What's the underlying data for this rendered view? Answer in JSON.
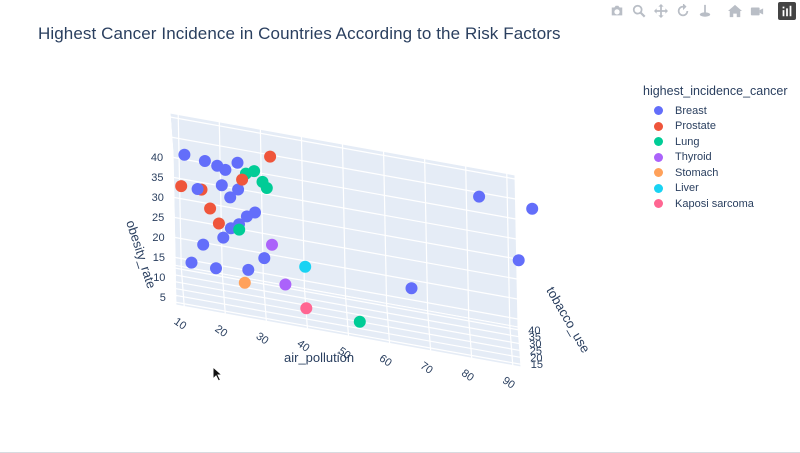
{
  "title": "Highest Cancer Incidence in Countries According to the Risk Factors",
  "modebar": [
    "camera-icon",
    "zoom-icon",
    "pan-icon",
    "orbit-icon",
    "turntable-icon",
    "home-icon",
    "camera-view-icon",
    "plotly-logo-icon"
  ],
  "legend": {
    "title": "highest_incidence_cancer",
    "items": [
      {
        "name": "Breast",
        "color": "#636efa"
      },
      {
        "name": "Prostate",
        "color": "#ef553b"
      },
      {
        "name": "Lung",
        "color": "#00cc96"
      },
      {
        "name": "Thyroid",
        "color": "#ab63fa"
      },
      {
        "name": "Stomach",
        "color": "#ffa15a"
      },
      {
        "name": "Liver",
        "color": "#19d3f3"
      },
      {
        "name": "Kaposi sarcoma",
        "color": "#ff6692"
      }
    ]
  },
  "chart_data": {
    "type": "scatter",
    "dimensions": 3,
    "title": "Highest Cancer Incidence in Countries According to the Risk Factors",
    "xlabel": "air_pollution",
    "ylabel": "tobacco_use",
    "zlabel": "obesity_rate",
    "x_ticks": [
      "10",
      "20",
      "30",
      "40",
      "50",
      "60",
      "70",
      "80",
      "90"
    ],
    "y_ticks": [
      "15",
      "20",
      "25",
      "30",
      "35",
      "40"
    ],
    "z_ticks": [
      "5",
      "10",
      "15",
      "20",
      "25",
      "30",
      "35",
      "40"
    ],
    "xlim": [
      8,
      92
    ],
    "ylim": [
      13,
      42
    ],
    "zlim": [
      3,
      41
    ],
    "legend_title": "highest_incidence_cancer",
    "legend_position": "right",
    "series": [
      {
        "name": "Breast",
        "color": "#636efa",
        "points": [
          [
            11,
            25,
            37
          ],
          [
            14,
            22,
            30
          ],
          [
            16,
            26,
            36
          ],
          [
            19,
            27,
            35
          ],
          [
            20,
            25,
            31
          ],
          [
            21,
            28,
            34
          ],
          [
            22,
            26,
            28
          ],
          [
            24,
            27,
            30
          ],
          [
            22,
            24,
            21
          ],
          [
            24,
            25,
            22
          ],
          [
            26,
            26,
            24
          ],
          [
            28,
            27,
            25
          ],
          [
            24,
            29,
            36
          ],
          [
            30,
            24,
            15
          ],
          [
            26,
            22,
            12
          ],
          [
            12,
            14,
            14
          ],
          [
            18,
            16,
            13
          ],
          [
            15,
            17,
            18
          ],
          [
            20,
            19,
            20
          ],
          [
            66,
            33,
            11
          ],
          [
            83,
            36,
            36
          ],
          [
            92,
            15,
            29
          ],
          [
            96,
            40,
            34
          ]
        ]
      },
      {
        "name": "Prostate",
        "color": "#ef553b",
        "points": [
          [
            10,
            22,
            30
          ],
          [
            15,
            25,
            29
          ],
          [
            17,
            24,
            25
          ],
          [
            19,
            20,
            23
          ],
          [
            32,
            29,
            39
          ],
          [
            25,
            26,
            33
          ]
        ]
      },
      {
        "name": "Lung",
        "color": "#00cc96",
        "points": [
          [
            26,
            28,
            34
          ],
          [
            28,
            28,
            35
          ],
          [
            30,
            27,
            33
          ],
          [
            31,
            26,
            32
          ],
          [
            24,
            24,
            21
          ],
          [
            53,
            22,
            4
          ]
        ]
      },
      {
        "name": "Thyroid",
        "color": "#ab63fa",
        "points": [
          [
            32,
            26,
            18
          ],
          [
            35,
            22,
            10
          ]
        ]
      },
      {
        "name": "Stomach",
        "color": "#ffa15a",
        "points": [
          [
            25,
            18,
            10
          ]
        ]
      },
      {
        "name": "Liver",
        "color": "#19d3f3",
        "points": [
          [
            40,
            26,
            14
          ]
        ]
      },
      {
        "name": "Kaposi sarcoma",
        "color": "#ff6692",
        "points": [
          [
            40,
            22,
            5
          ]
        ]
      }
    ]
  }
}
